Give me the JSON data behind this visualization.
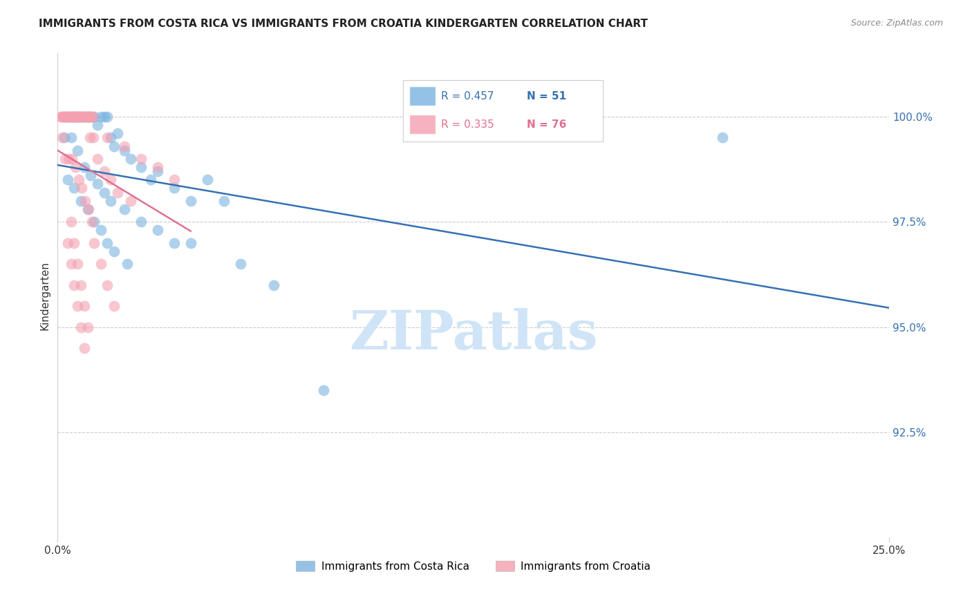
{
  "title": "IMMIGRANTS FROM COSTA RICA VS IMMIGRANTS FROM CROATIA KINDERGARTEN CORRELATION CHART",
  "source": "Source: ZipAtlas.com",
  "ylabel": "Kindergarten",
  "xmin": 0.0,
  "xmax": 25.0,
  "ymin": 90.0,
  "ymax": 101.5,
  "yticks": [
    92.5,
    95.0,
    97.5,
    100.0
  ],
  "ytick_labels": [
    "92.5%",
    "95.0%",
    "97.5%",
    "100.0%"
  ],
  "series1_name": "Immigrants from Costa Rica",
  "series2_name": "Immigrants from Croatia",
  "color1": "#7ab3e0",
  "color2": "#f4a0b0",
  "line1_color": "#3570b2",
  "line2_color": "#e07090",
  "watermark": "ZIPatlas",
  "watermark_color": "#d0e4f7",
  "costa_rica_x": [
    0.3,
    0.5,
    0.5,
    0.6,
    0.7,
    0.8,
    0.9,
    1.0,
    1.1,
    1.2,
    1.3,
    1.4,
    1.5,
    1.6,
    1.7,
    1.8,
    2.0,
    2.2,
    2.5,
    2.8,
    3.0,
    3.5,
    4.0,
    4.5,
    5.0,
    0.2,
    0.4,
    0.6,
    0.8,
    1.0,
    1.2,
    1.4,
    1.6,
    2.0,
    2.5,
    3.0,
    3.5,
    4.0,
    5.5,
    6.5,
    8.0,
    0.3,
    0.5,
    0.7,
    0.9,
    1.1,
    1.3,
    1.5,
    1.7,
    2.1,
    20.0
  ],
  "costa_rica_y": [
    100.0,
    100.0,
    100.0,
    100.0,
    100.0,
    100.0,
    100.0,
    100.0,
    100.0,
    99.8,
    100.0,
    100.0,
    100.0,
    99.5,
    99.3,
    99.6,
    99.2,
    99.0,
    98.8,
    98.5,
    98.7,
    98.3,
    98.0,
    98.5,
    98.0,
    99.5,
    99.5,
    99.2,
    98.8,
    98.6,
    98.4,
    98.2,
    98.0,
    97.8,
    97.5,
    97.3,
    97.0,
    97.0,
    96.5,
    96.0,
    93.5,
    98.5,
    98.3,
    98.0,
    97.8,
    97.5,
    97.3,
    97.0,
    96.8,
    96.5,
    99.5
  ],
  "croatia_x": [
    0.1,
    0.2,
    0.3,
    0.4,
    0.5,
    0.6,
    0.7,
    0.8,
    0.9,
    1.0,
    0.15,
    0.25,
    0.35,
    0.45,
    0.55,
    0.65,
    0.75,
    0.85,
    0.95,
    1.05,
    0.12,
    0.22,
    0.32,
    0.42,
    0.52,
    0.62,
    0.72,
    0.82,
    0.92,
    1.02,
    0.18,
    0.28,
    0.38,
    0.48,
    0.58,
    0.68,
    0.78,
    0.88,
    0.98,
    1.08,
    0.13,
    0.23,
    0.33,
    0.43,
    0.53,
    0.63,
    0.73,
    0.83,
    0.93,
    1.03,
    1.5,
    2.0,
    2.5,
    3.0,
    3.5,
    1.2,
    1.4,
    1.6,
    1.8,
    2.2,
    0.4,
    0.5,
    0.6,
    0.7,
    0.8,
    0.9,
    1.1,
    1.3,
    1.5,
    1.7,
    0.3,
    0.4,
    0.5,
    0.6,
    0.7,
    0.8
  ],
  "croatia_y": [
    100.0,
    100.0,
    100.0,
    100.0,
    100.0,
    100.0,
    100.0,
    100.0,
    100.0,
    100.0,
    100.0,
    100.0,
    100.0,
    100.0,
    100.0,
    100.0,
    100.0,
    100.0,
    100.0,
    100.0,
    100.0,
    100.0,
    100.0,
    100.0,
    100.0,
    100.0,
    100.0,
    100.0,
    100.0,
    100.0,
    100.0,
    100.0,
    100.0,
    100.0,
    100.0,
    100.0,
    100.0,
    100.0,
    99.5,
    99.5,
    99.5,
    99.0,
    99.0,
    99.0,
    98.8,
    98.5,
    98.3,
    98.0,
    97.8,
    97.5,
    99.5,
    99.3,
    99.0,
    98.8,
    98.5,
    99.0,
    98.7,
    98.5,
    98.2,
    98.0,
    97.5,
    97.0,
    96.5,
    96.0,
    95.5,
    95.0,
    97.0,
    96.5,
    96.0,
    95.5,
    97.0,
    96.5,
    96.0,
    95.5,
    95.0,
    94.5
  ],
  "legend1_r": "R = 0.457",
  "legend1_n": "N = 51",
  "legend2_r": "R = 0.335",
  "legend2_n": "N = 76"
}
